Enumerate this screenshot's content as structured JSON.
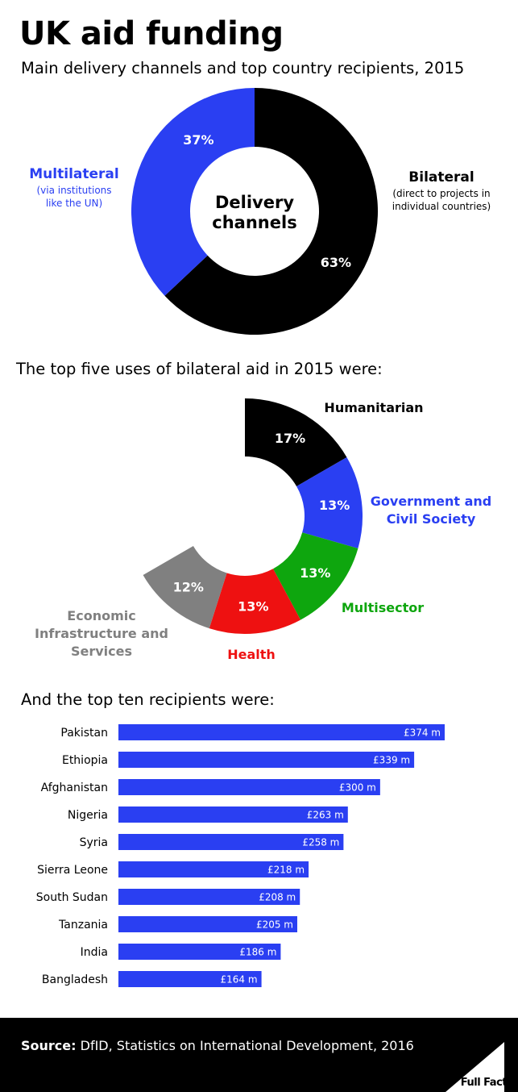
{
  "title": "UK aid funding",
  "subtitle": "Main delivery channels and top country recipients, 2015",
  "section2_title": "The top five uses of bilateral aid in 2015 were:",
  "section3_title": "And the top ten recipients were:",
  "footer": {
    "source_label": "Source:",
    "source_text": " DfID, Statistics on International Development, 2016",
    "logo": "Full Fact"
  },
  "colors": {
    "black": "#000000",
    "blue": "#2a3ff2",
    "red": "#ee1111",
    "green": "#0ea60e",
    "grey": "#808080"
  },
  "chart_data": [
    {
      "type": "pie",
      "center_label": [
        "Delivery",
        "channels"
      ],
      "slices": [
        {
          "name": "Bilateral",
          "note": [
            "(direct to projects in",
            "individual countries)"
          ],
          "value": 63,
          "label": "63%",
          "color": "#000000"
        },
        {
          "name": "Multilateral",
          "note": [
            "(via institutions",
            "like the UN)"
          ],
          "value": 37,
          "label": "37%",
          "color": "#2a3ff2"
        }
      ]
    },
    {
      "type": "pie",
      "slices": [
        {
          "name": [
            "Humanitarian"
          ],
          "value": 17,
          "label": "17%",
          "color": "#000000"
        },
        {
          "name": [
            "Government and",
            "Civil Society"
          ],
          "value": 13,
          "label": "13%",
          "color": "#2a3ff2"
        },
        {
          "name": [
            "Multisector"
          ],
          "value": 13,
          "label": "13%",
          "color": "#0ea60e"
        },
        {
          "name": [
            "Health"
          ],
          "value": 13,
          "label": "13%",
          "color": "#ee1111"
        },
        {
          "name": [
            "Economic",
            "Infrastructure and",
            "Services"
          ],
          "value": 12,
          "label": "12%",
          "color": "#808080"
        }
      ]
    },
    {
      "type": "bar",
      "orientation": "horizontal",
      "categories": [
        "Pakistan",
        "Ethiopia",
        "Afghanistan",
        "Nigeria",
        "Syria",
        "Sierra Leone",
        "South Sudan",
        "Tanzania",
        "India",
        "Bangladesh"
      ],
      "values": [
        374,
        339,
        300,
        263,
        258,
        218,
        208,
        205,
        186,
        164
      ],
      "value_labels": [
        "£374 m",
        "£339 m",
        "£300 m",
        "£263 m",
        "£258 m",
        "£218 m",
        "£208 m",
        "£205 m",
        "£186 m",
        "£164 m"
      ],
      "color": "#2a3ff2"
    }
  ]
}
